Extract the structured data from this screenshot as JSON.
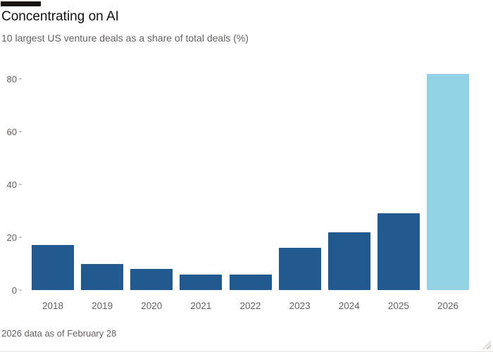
{
  "chart_data": {
    "type": "bar",
    "title": "Concentrating on AI",
    "subtitle": "10 largest US venture deals as a share of total deals (%)",
    "footnote": "2026 data as of February 28",
    "categories": [
      "2018",
      "2019",
      "2020",
      "2021",
      "2022",
      "2023",
      "2024",
      "2025",
      "2026"
    ],
    "values": [
      17,
      10,
      8,
      6,
      6,
      16,
      22,
      29,
      82
    ],
    "xlabel": "",
    "ylabel": "",
    "ylim": [
      0,
      80
    ],
    "yticks": [
      0,
      20,
      40,
      60,
      80
    ],
    "grid": false,
    "legend": "none",
    "bar_color": "#22598f",
    "highlight_color": "#92d2e4",
    "highlight_category": "2026",
    "accent_rule_color": "#17140f",
    "text_color": "#66605c"
  }
}
